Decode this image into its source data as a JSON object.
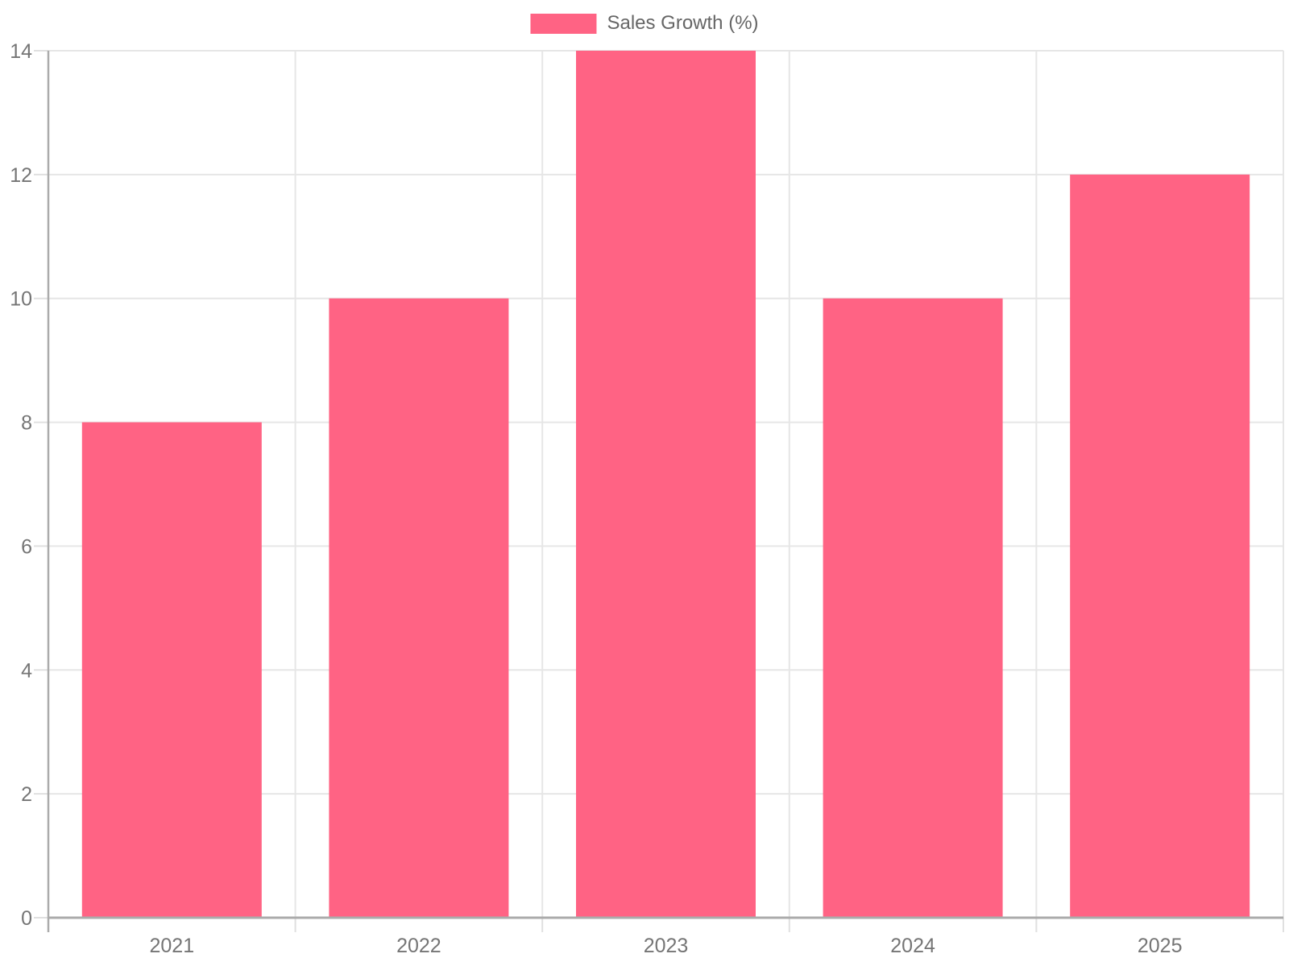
{
  "legend": {
    "label": "Sales Growth (%)",
    "swatch_color": "#FF6384"
  },
  "chart_data": {
    "type": "bar",
    "categories": [
      "2021",
      "2022",
      "2023",
      "2024",
      "2025"
    ],
    "series": [
      {
        "name": "Sales Growth (%)",
        "values": [
          8,
          10,
          14,
          10,
          12
        ]
      }
    ],
    "title": "",
    "xlabel": "",
    "ylabel": "",
    "ylim": [
      0,
      14
    ],
    "ytick_step": 2,
    "y_tick_labels": [
      "0",
      "2",
      "4",
      "6",
      "8",
      "10",
      "12",
      "14"
    ],
    "grid": true,
    "legend_position": "top-center",
    "bar_color": "#FF6384"
  },
  "colors": {
    "bar": "#FF6384",
    "axis_line": "#ababab",
    "grid_line": "#e6e6e6",
    "tick_line": "#e0e0e0",
    "axis_text": "#757575",
    "legend_text": "#666666"
  }
}
